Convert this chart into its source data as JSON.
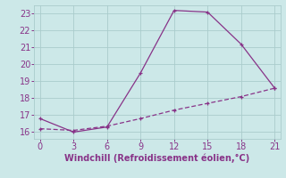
{
  "line1_x": [
    0,
    3,
    6,
    9,
    12,
    15,
    18,
    21
  ],
  "line1_y": [
    16.8,
    16.0,
    16.3,
    19.5,
    23.2,
    23.1,
    21.2,
    18.6
  ],
  "line2_x": [
    0,
    3,
    6,
    9,
    12,
    15,
    18,
    21
  ],
  "line2_y": [
    16.2,
    16.1,
    16.35,
    16.8,
    17.3,
    17.7,
    18.1,
    18.6
  ],
  "line_color": "#883388",
  "bg_color": "#cce8e8",
  "grid_color": "#aacccc",
  "xlabel": "Windchill (Refroidissement éolien,°C)",
  "xlabel_color": "#883388",
  "tick_color": "#883388",
  "xlim": [
    -0.5,
    21.5
  ],
  "ylim": [
    15.6,
    23.5
  ],
  "xticks": [
    0,
    3,
    6,
    9,
    12,
    15,
    18,
    21
  ],
  "yticks": [
    16,
    17,
    18,
    19,
    20,
    21,
    22,
    23
  ],
  "xlabel_fontsize": 7,
  "tick_fontsize": 7
}
